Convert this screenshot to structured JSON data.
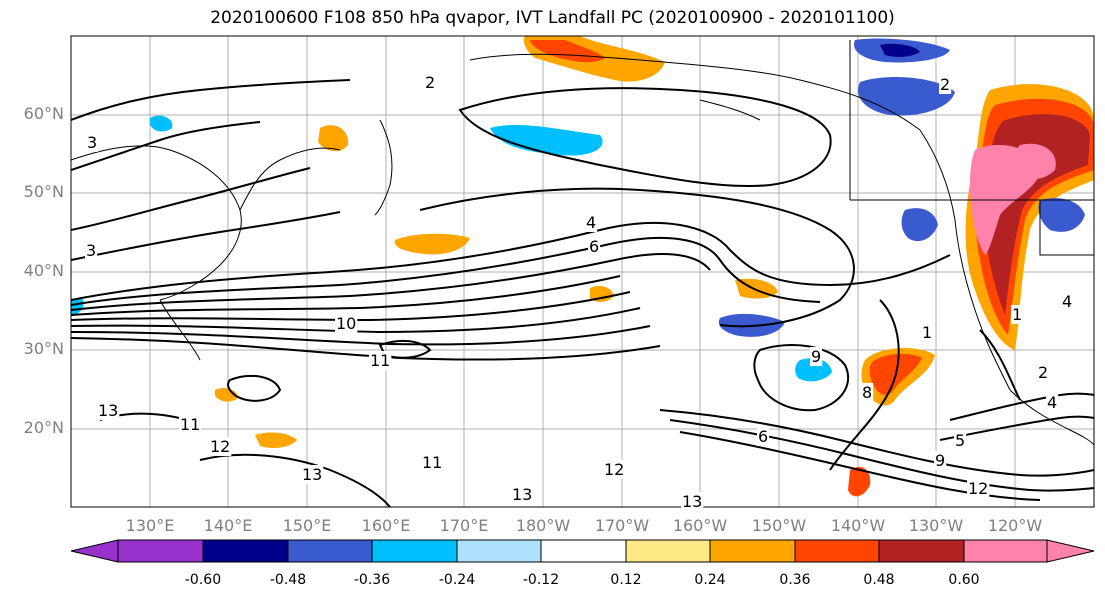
{
  "title": "2020100600 F108 850 hPa qvapor, IVT Landfall PC (2020100900 - 2020101100)",
  "lat_labels": [
    "60°N",
    "50°N",
    "40°N",
    "30°N",
    "20°N"
  ],
  "lon_labels": [
    "130°E",
    "140°E",
    "150°E",
    "160°E",
    "170°E",
    "180°W",
    "170°W",
    "160°W",
    "150°W",
    "140°W",
    "130°W",
    "120°W"
  ],
  "colorbar": {
    "ticks": [
      "-0.60",
      "-0.48",
      "-0.36",
      "-0.24",
      "-0.12",
      "0.12",
      "0.24",
      "0.36",
      "0.48",
      "0.60"
    ],
    "colors": [
      "#9932cc",
      "#00008b",
      "#3a5bcf",
      "#00bfff",
      "#b0e2ff",
      "#ffffff",
      "#ffe987",
      "#ffa500",
      "#ff4500",
      "#b22222",
      "#ff82ab"
    ],
    "extend": "both"
  },
  "contour_labels": [
    "2",
    "2",
    "3",
    "3",
    "4",
    "4",
    "6",
    "6",
    "8",
    "9",
    "9",
    "10",
    "11",
    "11",
    "11",
    "12",
    "12",
    "12",
    "13",
    "13",
    "13",
    "13",
    "1",
    "1",
    "5",
    "2",
    "4"
  ]
}
